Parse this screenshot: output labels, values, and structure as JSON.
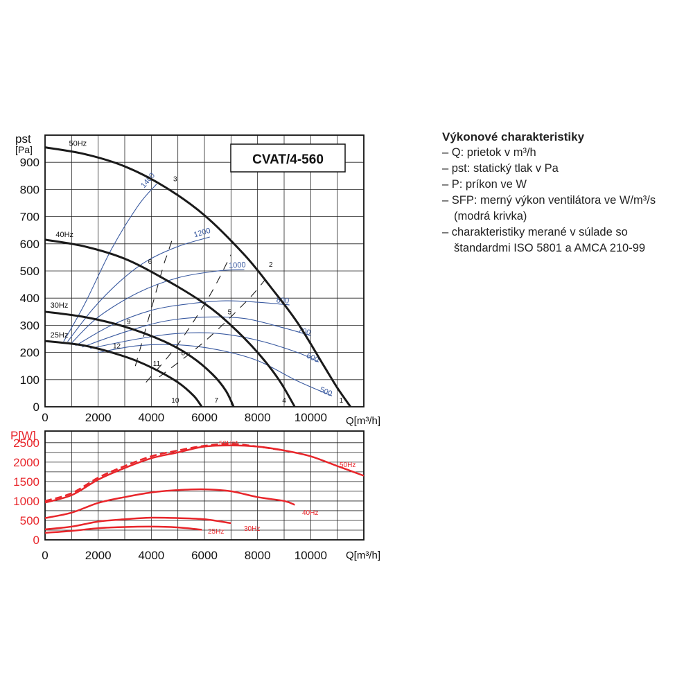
{
  "chart_data": [
    {
      "type": "line",
      "title": "CVAT/4-560",
      "ylabel_top": "pst",
      "ylabel_unit": "[Pa]",
      "xlabel": "Q[m³/h]",
      "xlim": [
        0,
        12000
      ],
      "ylim": [
        0,
        1000
      ],
      "x_ticks": [
        "0",
        "2000",
        "4000",
        "6000",
        "8000",
        "10000"
      ],
      "y_ticks": [
        "0",
        "100",
        "200",
        "300",
        "400",
        "500",
        "600",
        "700",
        "800",
        "900"
      ],
      "grid": true,
      "series": [
        {
          "name": "50Hz",
          "color": "#1a1a1a",
          "points": [
            [
              0,
              955
            ],
            [
              1500,
              930
            ],
            [
              3000,
              885
            ],
            [
              4500,
              810
            ],
            [
              6000,
              705
            ],
            [
              7500,
              560
            ],
            [
              8500,
              440
            ],
            [
              9500,
              310
            ],
            [
              10500,
              150
            ],
            [
              11000,
              70
            ],
            [
              11500,
              0
            ]
          ]
        },
        {
          "name": "40Hz",
          "color": "#1a1a1a",
          "points": [
            [
              0,
              615
            ],
            [
              1500,
              590
            ],
            [
              3000,
              545
            ],
            [
              4500,
              470
            ],
            [
              6000,
              380
            ],
            [
              7000,
              300
            ],
            [
              8000,
              200
            ],
            [
              8800,
              100
            ],
            [
              9400,
              0
            ]
          ]
        },
        {
          "name": "30Hz",
          "color": "#1a1a1a",
          "points": [
            [
              0,
              350
            ],
            [
              1500,
              330
            ],
            [
              3000,
              295
            ],
            [
              4500,
              240
            ],
            [
              5500,
              185
            ],
            [
              6300,
              120
            ],
            [
              6800,
              60
            ],
            [
              7100,
              0
            ]
          ]
        },
        {
          "name": "25Hz",
          "color": "#1a1a1a",
          "points": [
            [
              0,
              242
            ],
            [
              1500,
              225
            ],
            [
              3000,
              185
            ],
            [
              4000,
              145
            ],
            [
              5000,
              90
            ],
            [
              5600,
              40
            ],
            [
              5900,
              0
            ]
          ]
        }
      ],
      "efficiency_curves": [
        {
          "label": "1400",
          "color": "#3a5aa0",
          "points": [
            [
              700,
              240
            ],
            [
              1500,
              380
            ],
            [
              2500,
              580
            ],
            [
              3500,
              740
            ],
            [
              4200,
              820
            ]
          ]
        },
        {
          "label": "1200",
          "color": "#3a5aa0",
          "points": [
            [
              850,
              240
            ],
            [
              1800,
              360
            ],
            [
              2800,
              460
            ],
            [
              3800,
              535
            ],
            [
              5000,
              590
            ],
            [
              6200,
              625
            ]
          ]
        },
        {
          "label": "1000",
          "color": "#3a5aa0",
          "points": [
            [
              1000,
              235
            ],
            [
              2000,
              330
            ],
            [
              3500,
              420
            ],
            [
              5000,
              475
            ],
            [
              6500,
              500
            ],
            [
              7500,
              505
            ]
          ]
        },
        {
          "label": "800",
          "color": "#3a5aa0",
          "points": [
            [
              1150,
              225
            ],
            [
              2500,
              300
            ],
            [
              4000,
              355
            ],
            [
              5500,
              380
            ],
            [
              6800,
              390
            ],
            [
              8000,
              385
            ],
            [
              9200,
              375
            ]
          ]
        },
        {
          "label": "700",
          "color": "#3a5aa0",
          "points": [
            [
              1400,
              220
            ],
            [
              3000,
              275
            ],
            [
              4500,
              315
            ],
            [
              6000,
              330
            ],
            [
              7500,
              325
            ],
            [
              9000,
              290
            ],
            [
              10000,
              262
            ]
          ]
        },
        {
          "label": "600",
          "color": "#3a5aa0",
          "points": [
            [
              1700,
              215
            ],
            [
              3500,
              250
            ],
            [
              5000,
              270
            ],
            [
              6500,
              270
            ],
            [
              8000,
              245
            ],
            [
              9500,
              200
            ],
            [
              10300,
              165
            ]
          ]
        },
        {
          "label": "500",
          "color": "#3a5aa0",
          "points": [
            [
              2000,
              200
            ],
            [
              3500,
              225
            ],
            [
              5000,
              228
            ],
            [
              6500,
              210
            ],
            [
              8000,
              170
            ],
            [
              9500,
              95
            ],
            [
              10800,
              40
            ]
          ]
        }
      ],
      "system_lines": [
        {
          "color": "#1a1a1a",
          "points": [
            [
              3400,
              150
            ],
            [
              4400,
              500
            ],
            [
              4600,
              560
            ],
            [
              4800,
              620
            ]
          ]
        },
        {
          "color": "#1a1a1a",
          "points": [
            [
              3800,
              90
            ],
            [
              5000,
              230
            ],
            [
              6200,
              410
            ],
            [
              7000,
              560
            ]
          ]
        },
        {
          "color": "#1a1a1a",
          "points": [
            [
              4300,
              110
            ],
            [
              6000,
              240
            ],
            [
              7600,
              390
            ],
            [
              8300,
              470
            ]
          ]
        }
      ],
      "markers": [
        {
          "label": "1",
          "x": 11150,
          "y": 15
        },
        {
          "label": "2",
          "x": 8500,
          "y": 515
        },
        {
          "label": "3",
          "x": 4900,
          "y": 830
        },
        {
          "label": "4",
          "x": 9000,
          "y": 15
        },
        {
          "label": "5",
          "x": 6950,
          "y": 340
        },
        {
          "label": "6",
          "x": 3950,
          "y": 525
        },
        {
          "label": "7",
          "x": 6450,
          "y": 15
        },
        {
          "label": "8",
          "x": 5200,
          "y": 190
        },
        {
          "label": "9",
          "x": 3150,
          "y": 305
        },
        {
          "label": "10",
          "x": 4900,
          "y": 15
        },
        {
          "label": "11",
          "x": 4200,
          "y": 150
        },
        {
          "label": "12",
          "x": 2700,
          "y": 215
        }
      ],
      "frequency_labels": [
        {
          "label": "50Hz",
          "x": 900,
          "y": 960
        },
        {
          "label": "40Hz",
          "x": 400,
          "y": 625
        },
        {
          "label": "30Hz",
          "x": 200,
          "y": 365
        },
        {
          "label": "25Hz",
          "x": 200,
          "y": 255
        }
      ]
    },
    {
      "type": "line",
      "ylabel": "P[W]",
      "xlabel": "Q[m³/h]",
      "xlim": [
        0,
        12000
      ],
      "ylim": [
        0,
        2800
      ],
      "x_ticks": [
        "0",
        "2000",
        "4000",
        "6000",
        "8000",
        "10000"
      ],
      "y_ticks": [
        "0",
        "500",
        "1000",
        "1500",
        "2000",
        "2500"
      ],
      "grid": true,
      "series": [
        {
          "name": "50Hz",
          "color": "#e8262b",
          "points": [
            [
              0,
              960
            ],
            [
              1000,
              1150
            ],
            [
              2000,
              1550
            ],
            [
              3000,
              1850
            ],
            [
              4000,
              2100
            ],
            [
              5000,
              2250
            ],
            [
              6000,
              2400
            ],
            [
              7000,
              2430
            ],
            [
              8000,
              2400
            ],
            [
              9000,
              2300
            ],
            [
              10000,
              2150
            ],
            [
              11000,
              1900
            ],
            [
              12000,
              1650
            ]
          ]
        },
        {
          "name": "50Hz*",
          "color": "#e8262b",
          "dashed": true,
          "points": [
            [
              0,
              1000
            ],
            [
              1000,
              1200
            ],
            [
              2000,
              1600
            ],
            [
              3000,
              1900
            ],
            [
              4000,
              2150
            ],
            [
              5000,
              2300
            ],
            [
              6000,
              2420
            ],
            [
              7000,
              2470
            ],
            [
              8000,
              2400
            ],
            [
              9000,
              2300
            ]
          ]
        },
        {
          "name": "40Hz",
          "color": "#e8262b",
          "points": [
            [
              0,
              560
            ],
            [
              1000,
              700
            ],
            [
              2000,
              950
            ],
            [
              3000,
              1100
            ],
            [
              4000,
              1220
            ],
            [
              5000,
              1280
            ],
            [
              6000,
              1300
            ],
            [
              7000,
              1250
            ],
            [
              8000,
              1100
            ],
            [
              9000,
              1000
            ],
            [
              9400,
              900
            ]
          ]
        },
        {
          "name": "30Hz",
          "color": "#e8262b",
          "points": [
            [
              0,
              270
            ],
            [
              1000,
              340
            ],
            [
              2000,
              470
            ],
            [
              3000,
              530
            ],
            [
              4000,
              570
            ],
            [
              5000,
              560
            ],
            [
              6000,
              530
            ],
            [
              7000,
              430
            ]
          ]
        },
        {
          "name": "25Hz",
          "color": "#e8262b",
          "points": [
            [
              0,
              180
            ],
            [
              1000,
              230
            ],
            [
              2000,
              300
            ],
            [
              3000,
              330
            ],
            [
              4000,
              340
            ],
            [
              5000,
              320
            ],
            [
              5900,
              260
            ]
          ]
        }
      ]
    }
  ],
  "legend": {
    "title": "Výkonové charakteristiky",
    "items": [
      "– Q: prietok v m³/h",
      "– pst: statický tlak v Pa",
      "– P: príkon ve W",
      "– SFP:  merný výkon ventilátora ve W/m³/s (modrá krivka)",
      "– charakteristiky merané v súlade so štandardmi ISO 5801 a AMCA 210-99"
    ]
  }
}
